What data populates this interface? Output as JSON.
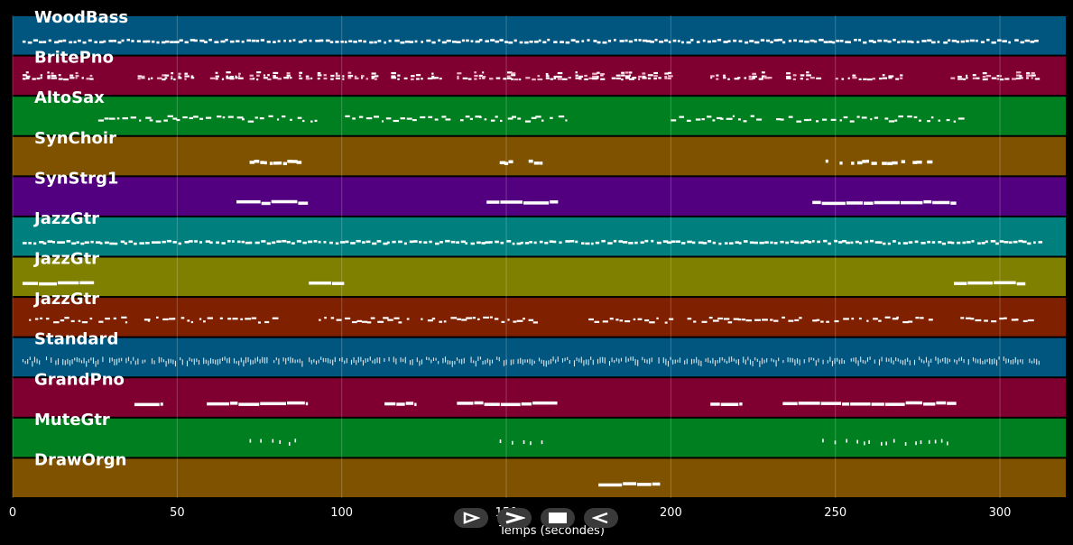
{
  "chart_data": {
    "type": "piano-roll",
    "xlabel": "Temps (secondes)",
    "xlim": [
      0,
      320
    ],
    "xticks": [
      0,
      50,
      100,
      150,
      200,
      250,
      300
    ],
    "grid": true,
    "tracks": [
      {
        "name": "WoodBass",
        "color": "#00567f",
        "pattern": "dense",
        "segments": [
          [
            3,
            312
          ]
        ]
      },
      {
        "name": "BritePno",
        "color": "#7f0030",
        "pattern": "chords",
        "segments": [
          [
            3,
            25
          ],
          [
            38,
            55
          ],
          [
            60,
            70
          ],
          [
            72,
            85
          ],
          [
            87,
            110
          ],
          [
            115,
            130
          ],
          [
            135,
            160
          ],
          [
            162,
            180
          ],
          [
            182,
            200
          ],
          [
            212,
            230
          ],
          [
            235,
            245
          ],
          [
            250,
            270
          ],
          [
            285,
            312
          ]
        ]
      },
      {
        "name": "AltoSax",
        "color": "#007f20",
        "pattern": "melody",
        "segments": [
          [
            26,
            60
          ],
          [
            62,
            92
          ],
          [
            101,
            133
          ],
          [
            136,
            168
          ],
          [
            200,
            228
          ],
          [
            232,
            262
          ],
          [
            265,
            288
          ]
        ]
      },
      {
        "name": "SynChoir",
        "color": "#7f5200",
        "pattern": "sparse",
        "segments": [
          [
            72,
            88
          ],
          [
            148,
            163
          ],
          [
            247,
            268
          ],
          [
            270,
            285
          ]
        ]
      },
      {
        "name": "SynStrg1",
        "color": "#52007f",
        "pattern": "sustain",
        "segments": [
          [
            68,
            90
          ],
          [
            144,
            166
          ],
          [
            243,
            287
          ]
        ]
      },
      {
        "name": "JazzGtr",
        "color": "#007f7f",
        "pattern": "dense",
        "segments": [
          [
            3,
            312
          ]
        ]
      },
      {
        "name": "JazzGtr",
        "color": "#7f7f00",
        "pattern": "sustain",
        "segments": [
          [
            3,
            25
          ],
          [
            90,
            101
          ],
          [
            286,
            308
          ]
        ]
      },
      {
        "name": "JazzGtr",
        "color": "#7f2000",
        "pattern": "melody",
        "segments": [
          [
            5,
            35
          ],
          [
            40,
            60
          ],
          [
            63,
            80
          ],
          [
            93,
            120
          ],
          [
            124,
            160
          ],
          [
            175,
            200
          ],
          [
            205,
            240
          ],
          [
            243,
            280
          ],
          [
            288,
            310
          ]
        ]
      },
      {
        "name": "Standard",
        "color": "#00567f",
        "pattern": "drums",
        "segments": [
          [
            3,
            312
          ]
        ]
      },
      {
        "name": "GrandPno",
        "color": "#7f0030",
        "pattern": "sustain",
        "segments": [
          [
            37,
            46
          ],
          [
            59,
            90
          ],
          [
            113,
            123
          ],
          [
            135,
            166
          ],
          [
            212,
            222
          ],
          [
            234,
            287
          ]
        ]
      },
      {
        "name": "MuteGtr",
        "color": "#007f20",
        "pattern": "ticks",
        "segments": [
          [
            72,
            86
          ],
          [
            148,
            162
          ],
          [
            246,
            284
          ]
        ]
      },
      {
        "name": "DrawOrgn",
        "color": "#7f5200",
        "pattern": "sustain",
        "segments": [
          [
            178,
            197
          ]
        ]
      }
    ]
  },
  "controls": [
    {
      "name": "play-button",
      "icon": "play-outline-icon"
    },
    {
      "name": "forward-button",
      "icon": "chevron-right-icon"
    },
    {
      "name": "stop-button",
      "icon": "stop-icon"
    },
    {
      "name": "rewind-button",
      "icon": "rewind-outline-icon"
    }
  ]
}
